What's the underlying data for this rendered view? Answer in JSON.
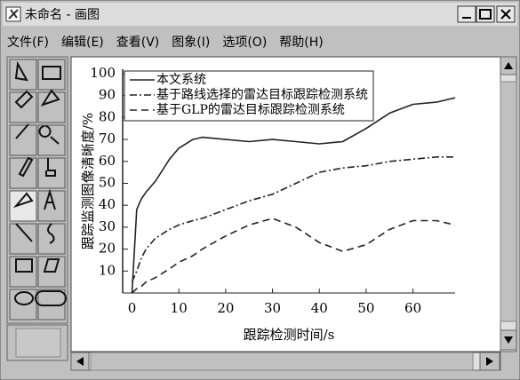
{
  "window": {
    "title": "未命名 - 画图"
  },
  "menu": [
    "文件(F)",
    "编辑(E)",
    "查看(V)",
    "图象(I)",
    "选项(O)",
    "帮助(H)"
  ],
  "chart_data": {
    "type": "line",
    "x_label": "跟踪检测时间/s",
    "y_label": "跟踪监测图像清晰度/%",
    "x": [
      0,
      1,
      2,
      3,
      5,
      8,
      10,
      13,
      15,
      20,
      25,
      30,
      35,
      40,
      45,
      50,
      55,
      60,
      65,
      69
    ],
    "series": [
      {
        "name": "本文系统",
        "color": "#222222",
        "dash": "solid",
        "values": [
          0,
          38,
          43,
          46,
          51,
          61,
          66,
          70,
          71,
          70,
          69,
          70,
          69,
          68,
          69,
          75,
          82,
          86,
          87,
          89
        ]
      },
      {
        "name": "基于路线选择的雷达目标跟踪检测系统",
        "color": "#222222",
        "dash": "dashdot",
        "values": [
          5,
          10,
          16,
          20,
          25,
          29,
          31,
          33,
          34,
          38,
          42,
          45,
          50,
          55,
          57,
          58,
          60,
          61,
          62,
          62
        ]
      },
      {
        "name": "基于GLP的雷达目标跟踪检测系统",
        "color": "#222222",
        "dash": "dashed",
        "values": [
          0,
          2,
          3,
          5,
          7,
          11,
          14,
          17,
          20,
          26,
          31,
          34,
          30,
          23,
          19,
          22,
          29,
          33,
          33,
          31
        ]
      }
    ],
    "xlim": [
      -2,
      69
    ],
    "ylim": [
      0,
      102
    ],
    "xticks": [
      0,
      10,
      20,
      30,
      40,
      50,
      60
    ],
    "yticks": [
      10,
      20,
      30,
      40,
      50,
      60,
      70,
      80,
      90,
      100
    ],
    "legend": "upper-left"
  }
}
